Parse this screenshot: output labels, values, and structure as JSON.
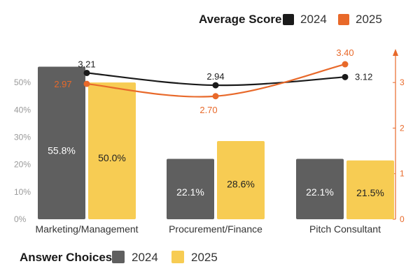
{
  "chart_data": {
    "type": "bar",
    "categories": [
      "Marketing/Management",
      "Procurement/Finance",
      "Pitch Consultant"
    ],
    "bar_series": [
      {
        "name": "2024",
        "values": [
          55.8,
          22.1,
          22.1
        ],
        "labels": [
          "55.8%",
          "22.1%",
          "22.1%"
        ],
        "color": "#5f5f5f"
      },
      {
        "name": "2025",
        "values": [
          50.0,
          28.6,
          21.5
        ],
        "labels": [
          "50.0%",
          "28.6%",
          "21.5%"
        ],
        "color": "#f7cc53"
      }
    ],
    "line_series": [
      {
        "name": "2024",
        "values": [
          3.21,
          2.94,
          3.12
        ],
        "labels": [
          "3.21",
          "2.94",
          "3.12"
        ],
        "color": "#1a1a1a",
        "label_color": "#222222"
      },
      {
        "name": "2025",
        "values": [
          2.97,
          2.7,
          3.4
        ],
        "labels": [
          "2.97",
          "2.70",
          "3.40"
        ],
        "color": "#e8692a",
        "label_color": "#e8692a"
      }
    ],
    "y_left": {
      "ticks": [
        0,
        10,
        20,
        30,
        40,
        50
      ],
      "tick_labels": [
        "0%",
        "10%",
        "20%",
        "30%",
        "40%",
        "50%"
      ],
      "range": [
        0,
        60
      ]
    },
    "y_right": {
      "ticks": [
        0,
        1,
        2,
        3
      ],
      "tick_labels": [
        "0",
        "1",
        "2",
        "3"
      ],
      "range": [
        0,
        3.6
      ]
    },
    "legend_line": {
      "title": "Average Score",
      "items": [
        "2024",
        "2025"
      ]
    },
    "legend_bar": {
      "title": "Answer Choices",
      "items": [
        "2024",
        "2025"
      ]
    }
  }
}
